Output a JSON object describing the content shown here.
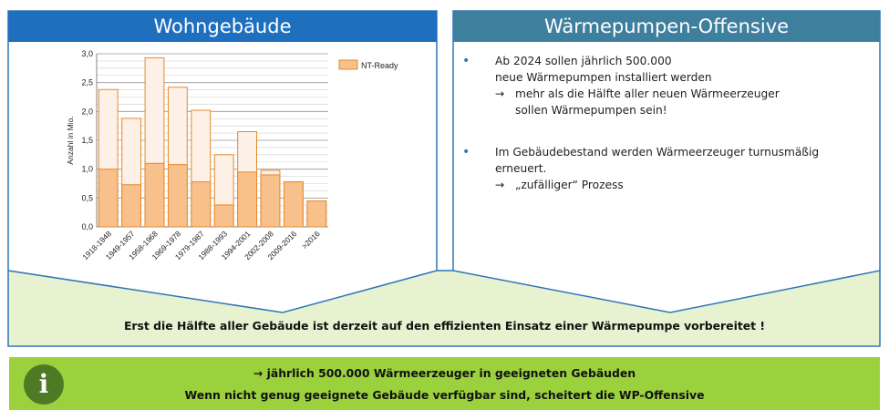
{
  "left_panel": {
    "title": "Wohngebäude"
  },
  "right_panel": {
    "title": "Wärmepumpen-Offensive",
    "bullets": [
      {
        "lines": [
          "Ab 2024 sollen jährlich 500.000",
          "neue Wärmepumpen installiert werden"
        ],
        "arrow_lines": [
          "mehr als die Hälfte aller neuen Wärmeerzeuger",
          "sollen Wärmepumpen sein!"
        ]
      },
      {
        "lines": [
          "Im Gebäudebestand werden Wärmeerzeuger turnusmäßig",
          "erneuert."
        ],
        "arrow_lines": [
          "„zufälliger“ Prozess"
        ]
      }
    ]
  },
  "banner": {
    "text": "Erst die Hälfte aller Gebäude ist derzeit auf den effizienten Einsatz einer Wärmepumpe vorbereitet !"
  },
  "info_box": {
    "icon": "info-icon",
    "line1": "→ jährlich 500.000 Wärmeerzeuger in geeigneten Gebäuden",
    "line2": "Wenn nicht genug geeignete Gebäude verfügbar sind, scheitert die WP-Offensive"
  },
  "colors": {
    "left_header": "#1f6fbf",
    "right_header": "#3f7f9e",
    "bar_fill": "#f8c08a",
    "bar_stroke": "#e58a2e",
    "bar_total_fill": "#fdf0e6",
    "banner_bg": "#e7f2d0",
    "info_bg": "#9bd13d",
    "icon_bg": "#4e7a25"
  },
  "chart_data": {
    "type": "bar",
    "ylabel": "Anzahl in Mio.",
    "ylim": [
      0,
      3.0
    ],
    "yticks": [
      "0,0",
      "0,5",
      "1,0",
      "1,5",
      "2,0",
      "2,5",
      "3,0"
    ],
    "categories": [
      "1918-1948",
      "1949-1957",
      "1958-1968",
      "1969-1978",
      "1979-1987",
      "1988-1993",
      "1994-2001",
      "2002-2008",
      "2009-2016",
      ">2016"
    ],
    "series": [
      {
        "name": "NT-Ready",
        "values": [
          1.0,
          0.73,
          1.1,
          1.08,
          0.78,
          0.38,
          0.95,
          0.9,
          0.78,
          0.45
        ]
      },
      {
        "name": "",
        "values": [
          2.38,
          1.88,
          2.93,
          2.42,
          2.02,
          1.25,
          1.65,
          0.98,
          0.78,
          0.45
        ]
      }
    ],
    "legend": "top-right",
    "grid": true
  }
}
